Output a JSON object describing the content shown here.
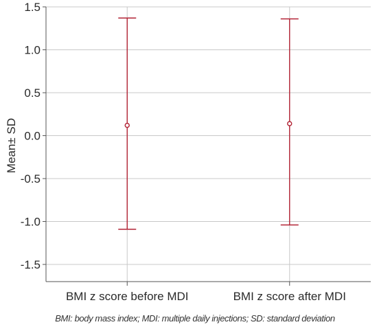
{
  "chart_data": {
    "type": "errorbar",
    "categories": [
      "BMI z score before MDI",
      "BMI z score after MDI"
    ],
    "series": [
      {
        "mean": [
          0.12,
          0.14
        ],
        "upper": [
          1.37,
          1.36
        ],
        "lower": [
          -1.09,
          -1.04
        ]
      }
    ],
    "ylabel": "Mean± SD",
    "xlabel": "",
    "ylim": [
      -1.7,
      1.5
    ],
    "yticks": [
      1.5,
      1.0,
      0.5,
      0.0,
      -0.5,
      -1.0,
      -1.5
    ],
    "ytick_labels": [
      "1.5",
      "1.0",
      "0.5",
      "0.0",
      "-0.5",
      "-1.0",
      "-1.5"
    ],
    "grid": "horizontal and vertical",
    "colors": {
      "series": "#b22234",
      "grid": "#c8c8c8",
      "axis": "#555555"
    }
  },
  "footnote": "BMI: body mass index; MDI: multiple daily injections; SD: standard deviation"
}
